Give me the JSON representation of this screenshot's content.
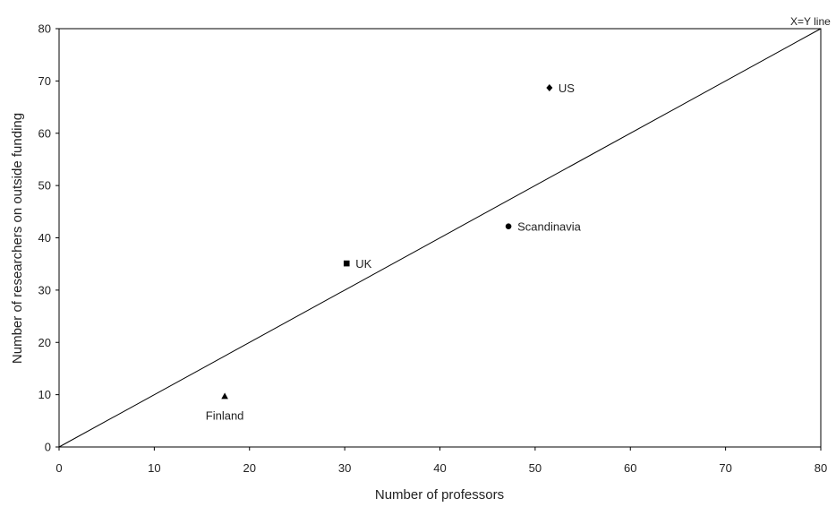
{
  "chart_data": {
    "type": "scatter",
    "title": "",
    "xlabel": "Number of professors",
    "ylabel": "Number of researchers on outside funding",
    "xlim": [
      0,
      80
    ],
    "ylim": [
      0,
      80
    ],
    "xticks": [
      "0",
      "10",
      "20",
      "30",
      "40",
      "50",
      "60",
      "70",
      "80"
    ],
    "yticks": [
      "0",
      "10",
      "20",
      "30",
      "40",
      "50",
      "60",
      "70",
      "80"
    ],
    "grid": false,
    "legend": "none",
    "reference_line": {
      "label": "X=Y line",
      "from": [
        0,
        0
      ],
      "to": [
        80,
        80
      ]
    },
    "points": [
      {
        "label": "US",
        "x": 51.5,
        "y": 68.7,
        "marker": "diamond",
        "label_side": "right"
      },
      {
        "label": "Scandinavia",
        "x": 47.2,
        "y": 42.2,
        "marker": "circle",
        "label_side": "right"
      },
      {
        "label": "UK",
        "x": 30.2,
        "y": 35.1,
        "marker": "square",
        "label_side": "right"
      },
      {
        "label": "Finland",
        "x": 17.4,
        "y": 9.7,
        "marker": "triangle",
        "label_side": "below"
      }
    ],
    "colors": {
      "marker": "#000000",
      "line": "#000000"
    }
  }
}
